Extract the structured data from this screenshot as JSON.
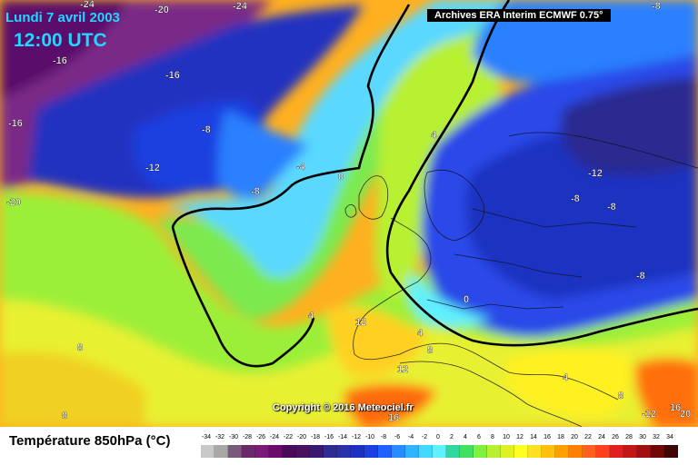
{
  "header": {
    "date": "Lundi 7 avril 2003",
    "time": "12:00 UTC",
    "source": "Archives ERA Interim ECMWF 0.75°"
  },
  "copyright": "Copyright © 2016 Meteociel.fr",
  "footer": {
    "title": "Température 850hPa (°C)"
  },
  "map_labels": [
    "-24",
    "-20",
    "-24",
    "-8",
    "-16",
    "-16",
    "-16",
    "-20",
    "-8",
    "-12",
    "-4",
    "0",
    "4",
    "-8",
    "-12",
    "-8",
    "-8",
    "-8",
    "0",
    "4",
    "12",
    "4",
    "8",
    "8",
    "8",
    "12",
    "16",
    "4",
    "8",
    "-12",
    "16",
    "20"
  ],
  "scale": {
    "labels": [
      "-34",
      "-32",
      "-30",
      "-28",
      "-26",
      "-24",
      "-22",
      "-20",
      "-18",
      "-16",
      "-14",
      "-12",
      "-10",
      "-8",
      "-6",
      "-4",
      "-2",
      "0",
      "2",
      "4",
      "6",
      "8",
      "10",
      "12",
      "14",
      "16",
      "18",
      "20",
      "22",
      "24",
      "26",
      "28",
      "30",
      "32",
      "34"
    ],
    "colors": [
      "#c8c8c8",
      "#a8a8a8",
      "#7a5a7a",
      "#6a2a6a",
      "#7a1a7a",
      "#6a0a6a",
      "#4a0a5a",
      "#4a1060",
      "#3a1870",
      "#2e2c90",
      "#2a30a8",
      "#1e30c0",
      "#1a40e0",
      "#2060ff",
      "#2a8aff",
      "#30b4ff",
      "#40d8ff",
      "#60f0ff",
      "#30d8a0",
      "#40e060",
      "#80f040",
      "#b8f030",
      "#e0f020",
      "#ffff20",
      "#ffe020",
      "#ffc010",
      "#ffa000",
      "#ff8000",
      "#ff6020",
      "#ff4020",
      "#e02020",
      "#c01818",
      "#a01010",
      "#700808",
      "#400404"
    ]
  },
  "colors": {
    "title_text": "#22d6ff",
    "contour_line": "#000000"
  }
}
